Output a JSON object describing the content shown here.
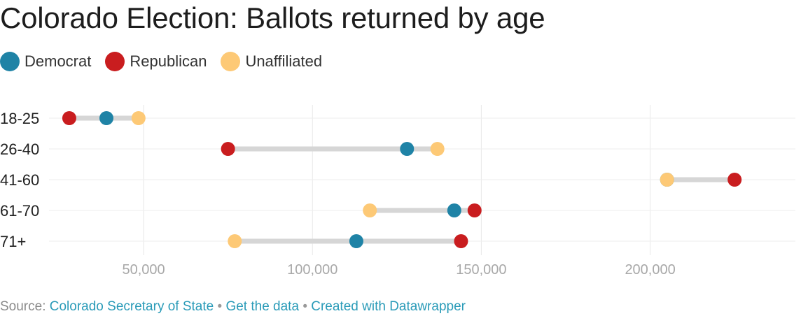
{
  "title": "Colorado Election: Ballots returned by age",
  "legend": [
    {
      "label": "Democrat",
      "color": "#1f83a6"
    },
    {
      "label": "Republican",
      "color": "#c91d1f"
    },
    {
      "label": "Unaffiliated",
      "color": "#fdc976"
    }
  ],
  "chart_data": {
    "type": "dot-range",
    "categories": [
      "18-25",
      "26-40",
      "41-60",
      "61-70",
      "71+"
    ],
    "series": [
      {
        "name": "Democrat",
        "color": "#1f83a6",
        "values": [
          39000,
          128000,
          205000,
          142000,
          113000
        ]
      },
      {
        "name": "Republican",
        "color": "#c91d1f",
        "values": [
          28000,
          75000,
          225000,
          148000,
          144000
        ]
      },
      {
        "name": "Unaffiliated",
        "color": "#fdc976",
        "values": [
          48500,
          137000,
          205000,
          117000,
          77000
        ]
      }
    ],
    "xticks": [
      50000,
      100000,
      150000,
      200000
    ],
    "xtick_labels": [
      "50,000",
      "100,000",
      "150,000",
      "200,000"
    ],
    "xlim": [
      22000,
      243000
    ],
    "grid": true
  },
  "footer": {
    "source_prefix": "Source:",
    "source_link": "Colorado Secretary of State",
    "separator": "•",
    "data_link": "Get the data",
    "credit_link": "Created with Datawrapper"
  }
}
